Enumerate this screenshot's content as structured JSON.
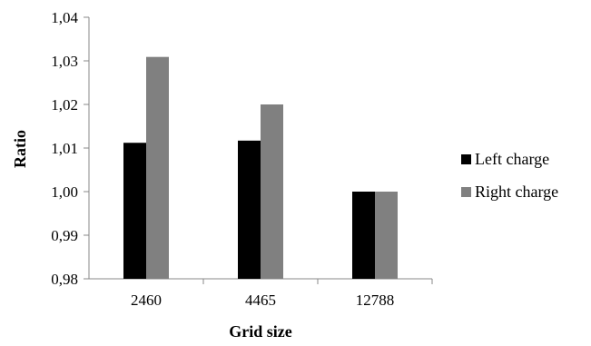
{
  "chart_data": {
    "type": "bar",
    "title": "",
    "xlabel": "Grid size",
    "ylabel": "Ratio",
    "categories": [
      "2460",
      "4465",
      "12788"
    ],
    "series": [
      {
        "name": "Left charge",
        "values": [
          1.0112,
          1.0117,
          1.0
        ],
        "color": "#000000"
      },
      {
        "name": "Right charge",
        "values": [
          1.0309,
          1.02,
          1.0
        ],
        "color": "#808080"
      }
    ],
    "ylim": [
      0.98,
      1.04
    ],
    "yticks": [
      "0,98",
      "0,99",
      "1,00",
      "1,01",
      "1,02",
      "1,03",
      "1,04"
    ],
    "grid": false,
    "legend_position": "right"
  }
}
